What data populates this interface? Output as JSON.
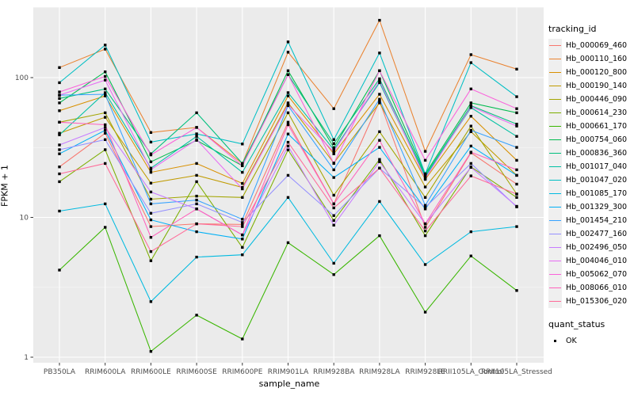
{
  "chart_data": {
    "type": "line",
    "title": "",
    "xlabel": "sample_name",
    "ylabel": "FPKM + 1",
    "y_scale": "log10",
    "y_ticks": [
      1,
      10,
      100
    ],
    "y_minor_ticks": [
      3.162,
      31.62,
      316.2
    ],
    "ylim": [
      1,
      320
    ],
    "grid": true,
    "legend_position": "right",
    "point_shape": "filled-square",
    "point_color": "#000000",
    "panel_bg": "#EBEBEB",
    "grid_major_color": "#FFFFFF",
    "tick_label_color": "#4D4D4D",
    "categories": [
      "PB350LA",
      "RRIM600LA",
      "RRIM600LE",
      "RRIM600SE",
      "RRIM600PE",
      "RRIM901LA",
      "RRIM928BA",
      "RRIM928LA",
      "RRIM928LE",
      "RRII105LA_Control",
      "RRII105LA_Stressed"
    ],
    "series": [
      {
        "name": "Hb_000069_460",
        "color": "#F8766D",
        "values": [
          23,
          40,
          8.6,
          9.0,
          8.9,
          48,
          12.5,
          68,
          8.5,
          29,
          17.3
        ]
      },
      {
        "name": "Hb_000110_160",
        "color": "#EA8331",
        "values": [
          118,
          160,
          40.5,
          44,
          24.3,
          152,
          60,
          257,
          29.7,
          146,
          115
        ]
      },
      {
        "name": "Hb_000120_800",
        "color": "#D89000",
        "values": [
          58,
          74,
          21,
          24.3,
          17.5,
          74,
          28.5,
          76,
          18.7,
          53,
          25.6
        ]
      },
      {
        "name": "Hb_000190_140",
        "color": "#C09B00",
        "values": [
          40,
          52,
          17.6,
          20,
          16.4,
          66,
          24.5,
          66,
          16.5,
          41,
          20
        ]
      },
      {
        "name": "Hb_000446_090",
        "color": "#A3A500",
        "values": [
          48,
          56,
          13.5,
          14.2,
          13.9,
          56,
          14.4,
          41,
          13.9,
          45,
          14.7
        ]
      },
      {
        "name": "Hb_000614_230",
        "color": "#7CAE00",
        "values": [
          18,
          30.5,
          4.9,
          18,
          6.1,
          30.4,
          9.5,
          26,
          7.4,
          23,
          13.9
        ]
      },
      {
        "name": "Hb_000661_170",
        "color": "#39B600",
        "values": [
          4.2,
          8.5,
          1.1,
          2.0,
          1.35,
          6.6,
          3.9,
          7.4,
          2.1,
          5.3,
          3.0
        ]
      },
      {
        "name": "Hb_000754_060",
        "color": "#00BB4E",
        "values": [
          66,
          110,
          25,
          35.6,
          23.4,
          112,
          31.5,
          112,
          20.5,
          66,
          56
        ]
      },
      {
        "name": "Hb_000836_360",
        "color": "#00BF7D",
        "values": [
          71,
          83,
          28.5,
          56,
          24.3,
          105,
          33.7,
          98,
          20,
          63,
          46.5
        ]
      },
      {
        "name": "Hb_001017_040",
        "color": "#00C1A3",
        "values": [
          39,
          78,
          22.5,
          38,
          21,
          78,
          30.5,
          92,
          19.5,
          61,
          38
        ]
      },
      {
        "name": "Hb_001047_020",
        "color": "#00BFC4",
        "values": [
          92,
          171,
          34.6,
          39.6,
          33.5,
          180,
          36,
          150,
          20.5,
          128,
          73
        ]
      },
      {
        "name": "Hb_001085_170",
        "color": "#00BAE0",
        "values": [
          11.1,
          12.5,
          2.5,
          5.2,
          5.4,
          13.9,
          4.7,
          13,
          4.6,
          7.9,
          8.6
        ]
      },
      {
        "name": "Hb_001329_300",
        "color": "#00B0F6",
        "values": [
          28.5,
          42,
          9.6,
          7.9,
          7.0,
          39.5,
          19.3,
          31.7,
          11.5,
          32.4,
          20
        ]
      },
      {
        "name": "Hb_001454_210",
        "color": "#35A2FF",
        "values": [
          75,
          76,
          12.5,
          13.3,
          9.7,
          63,
          21.9,
          70,
          12.2,
          42,
          31.7
        ]
      },
      {
        "name": "Hb_002477_160",
        "color": "#9590FF",
        "values": [
          30.5,
          36,
          10.7,
          12.5,
          9.2,
          20,
          10.3,
          22.5,
          11.8,
          24.3,
          11.9
        ]
      },
      {
        "name": "Hb_002496_050",
        "color": "#C77CFF",
        "values": [
          33,
          44,
          15.2,
          11.5,
          7.5,
          32.4,
          8.8,
          25,
          9.0,
          22.8,
          12
        ]
      },
      {
        "name": "Hb_004046_010",
        "color": "#E76BF3",
        "values": [
          75,
          96,
          22,
          36,
          16,
          64,
          29.5,
          95,
          19,
          62,
          45
        ]
      },
      {
        "name": "Hb_005062_070",
        "color": "#FA62DB",
        "values": [
          79,
          102,
          28,
          44,
          23.4,
          105,
          24.3,
          112,
          25.6,
          83,
          60
        ]
      },
      {
        "name": "Hb_008066_010",
        "color": "#FF62BC",
        "values": [
          48,
          46,
          7.2,
          11.5,
          7.5,
          46,
          12.5,
          35.6,
          9.0,
          29.3,
          21.9
        ]
      },
      {
        "name": "Hb_015306_020",
        "color": "#FF6A98",
        "values": [
          20.5,
          24.3,
          5.7,
          9.0,
          8.6,
          34.5,
          11.7,
          22.5,
          8.0,
          19.8,
          14.7
        ]
      }
    ]
  },
  "legend": {
    "tracking_title": "tracking_id",
    "quant_title": "quant_status",
    "quant_items": [
      {
        "label": "OK",
        "marker": "black-square"
      }
    ]
  }
}
